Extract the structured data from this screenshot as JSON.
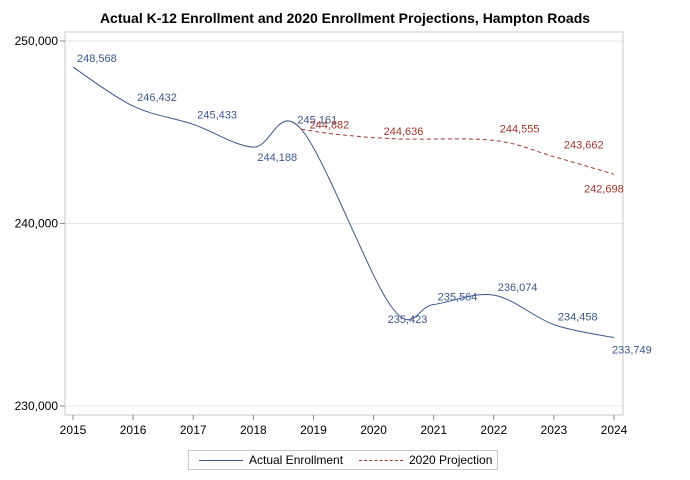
{
  "chart_data": {
    "type": "line",
    "title": "Actual K-12 Enrollment and 2020 Enrollment Projections, Hampton Roads",
    "xlabel": "",
    "ylabel": "",
    "x_ticks": [
      "2015",
      "2016",
      "2017",
      "2018",
      "2019",
      "2020",
      "2021",
      "2022",
      "2023",
      "2024"
    ],
    "y_ticks": [
      "230,000",
      "240,000",
      "250,000"
    ],
    "xlim": [
      2015,
      2024
    ],
    "ylim": [
      230000,
      250000
    ],
    "grid": "horizontal",
    "legend_position": "bottom",
    "series": [
      {
        "name": "Actual Enrollment",
        "style": "solid",
        "color": "#3e5590",
        "points": [
          {
            "x": 2015,
            "y": 248568,
            "label": "248,568"
          },
          {
            "x": 2016,
            "y": 246432,
            "label": "246,432"
          },
          {
            "x": 2017,
            "y": 245433,
            "label": "245,433"
          },
          {
            "x": 2018,
            "y": 244188,
            "label": "244,188"
          },
          {
            "x": 2018.8,
            "y": 245161,
            "label": "245,161"
          },
          {
            "x": 2020.3,
            "y": 235423,
            "label": "235,423"
          },
          {
            "x": 2021,
            "y": 235564,
            "label": "235,564"
          },
          {
            "x": 2022,
            "y": 236074,
            "label": "236,074"
          },
          {
            "x": 2023,
            "y": 234458,
            "label": "234,458"
          },
          {
            "x": 2024,
            "y": 233749,
            "label": "233,749"
          }
        ]
      },
      {
        "name": "2020 Projection",
        "style": "dashed",
        "color": "#a8342b",
        "points": [
          {
            "x": 2018.8,
            "y": 245161,
            "label": ""
          },
          {
            "x": 2019.4,
            "y": 244882,
            "label": "244,882"
          },
          {
            "x": 2020.4,
            "y": 244636,
            "label": "244,636"
          },
          {
            "x": 2022,
            "y": 244555,
            "label": "244,555"
          },
          {
            "x": 2023,
            "y": 243662,
            "label": "243,662"
          },
          {
            "x": 2024,
            "y": 242698,
            "label": "242,698"
          }
        ]
      }
    ]
  }
}
